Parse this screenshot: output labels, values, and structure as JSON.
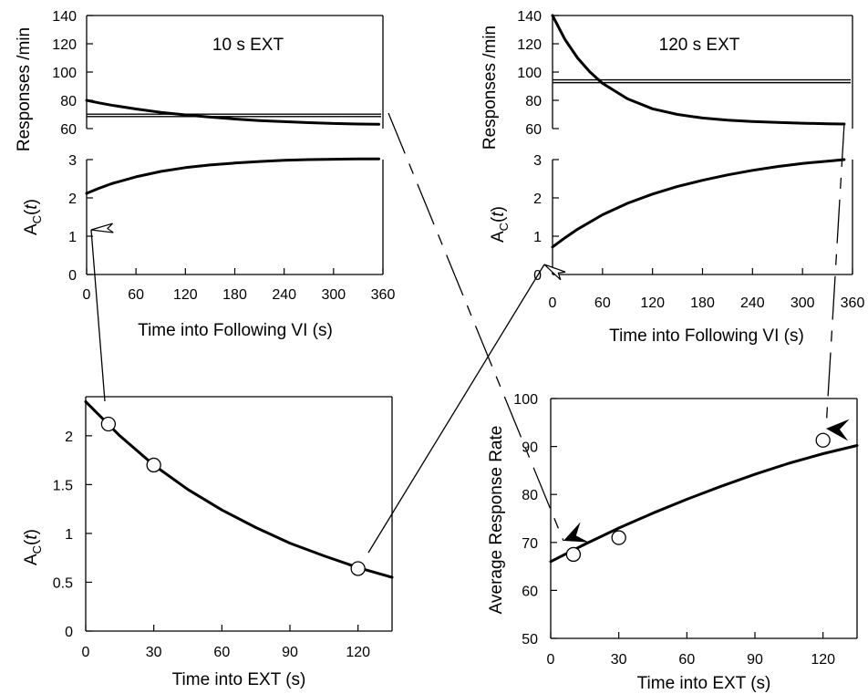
{
  "chart_data": [
    {
      "id": "p10resp",
      "type": "line",
      "title": "10 s EXT",
      "ylabel": "Responses /min",
      "xlim": [
        0,
        360
      ],
      "ylim": [
        60,
        140
      ],
      "yticks": [
        60,
        80,
        100,
        120,
        140
      ],
      "series": [
        {
          "x": [
            0,
            15,
            30,
            60,
            90,
            120,
            150,
            180,
            210,
            240,
            270,
            300,
            330,
            355
          ],
          "y": [
            80,
            78.2,
            76.6,
            73.9,
            71.5,
            69.7,
            68.1,
            66.8,
            65.7,
            64.9,
            64.2,
            63.6,
            63.2,
            63
          ]
        }
      ],
      "hlines": [
        68.5,
        70.2
      ]
    },
    {
      "id": "p10ac",
      "type": "line",
      "ylabel": "A_C(t)",
      "xlabel": "Time into Following VI (s)",
      "xlim": [
        0,
        360
      ],
      "ylim": [
        0,
        3
      ],
      "xticks": [
        0,
        60,
        120,
        180,
        240,
        300,
        360
      ],
      "yticks": [
        0,
        1,
        2,
        3
      ],
      "series": [
        {
          "x": [
            0,
            15,
            30,
            60,
            90,
            120,
            150,
            180,
            210,
            240,
            270,
            300,
            330,
            355
          ],
          "y": [
            2.12,
            2.25,
            2.37,
            2.55,
            2.69,
            2.79,
            2.86,
            2.91,
            2.95,
            2.98,
            3.0,
            3.01,
            3.02,
            3.02
          ]
        }
      ]
    },
    {
      "id": "p120resp",
      "type": "line",
      "title": "120 s EXT",
      "ylabel": "Responses /min",
      "xlim": [
        0,
        360
      ],
      "ylim": [
        60,
        140
      ],
      "yticks": [
        60,
        80,
        100,
        120,
        140
      ],
      "series": [
        {
          "x": [
            0,
            15,
            30,
            45,
            60,
            90,
            120,
            150,
            180,
            210,
            240,
            270,
            300,
            330,
            350
          ],
          "y": [
            140,
            123,
            110,
            100,
            92,
            81,
            74,
            70,
            67.5,
            66,
            65,
            64.3,
            63.8,
            63.4,
            63.2
          ]
        }
      ],
      "hlines": [
        92.5,
        94.5
      ]
    },
    {
      "id": "p120ac",
      "type": "line",
      "ylabel": "A_C(t)",
      "xlabel": "Time into Following VI (s)",
      "xlim": [
        0,
        360
      ],
      "ylim": [
        0,
        3
      ],
      "xticks": [
        0,
        60,
        120,
        180,
        240,
        300,
        360
      ],
      "yticks": [
        0,
        1,
        2,
        3
      ],
      "series": [
        {
          "x": [
            0,
            15,
            30,
            60,
            90,
            120,
            150,
            180,
            210,
            240,
            270,
            300,
            330,
            350
          ],
          "y": [
            0.72,
            0.96,
            1.18,
            1.56,
            1.86,
            2.1,
            2.3,
            2.46,
            2.6,
            2.72,
            2.82,
            2.9,
            2.96,
            3.0
          ]
        }
      ]
    },
    {
      "id": "pacext",
      "type": "scatter",
      "ylabel": "A_C(t)",
      "xlabel": "Time into EXT (s)",
      "xlim": [
        0,
        135
      ],
      "ylim": [
        0,
        2.4
      ],
      "xticks": [
        0,
        30,
        60,
        90,
        120
      ],
      "yticks": [
        0,
        0.5,
        1,
        1.5,
        2
      ],
      "ytick_labels": [
        "0",
        "0.5",
        "1",
        "1.5",
        "2"
      ],
      "series": [
        {
          "x": [
            0,
            15,
            30,
            45,
            60,
            75,
            90,
            105,
            120,
            135
          ],
          "y": [
            2.35,
            2.0,
            1.7,
            1.45,
            1.24,
            1.06,
            0.9,
            0.77,
            0.65,
            0.55
          ]
        }
      ],
      "points": {
        "x": [
          10,
          30,
          120
        ],
        "y": [
          2.12,
          1.7,
          0.64
        ]
      }
    },
    {
      "id": "prate",
      "type": "scatter",
      "ylabel": "Average Response Rate",
      "xlabel": "Time into EXT (s)",
      "xlim": [
        0,
        135
      ],
      "ylim": [
        50,
        100
      ],
      "xticks": [
        0,
        30,
        60,
        90,
        120
      ],
      "yticks": [
        50,
        60,
        70,
        80,
        90,
        100
      ],
      "series": [
        {
          "x": [
            0,
            15,
            30,
            45,
            60,
            75,
            90,
            105,
            120,
            135
          ],
          "y": [
            66,
            69.6,
            73,
            76.1,
            79,
            81.7,
            84.2,
            86.5,
            88.5,
            90.2
          ]
        }
      ],
      "points": {
        "x": [
          10,
          30,
          120
        ],
        "y": [
          67.5,
          71,
          91.3
        ]
      }
    }
  ]
}
